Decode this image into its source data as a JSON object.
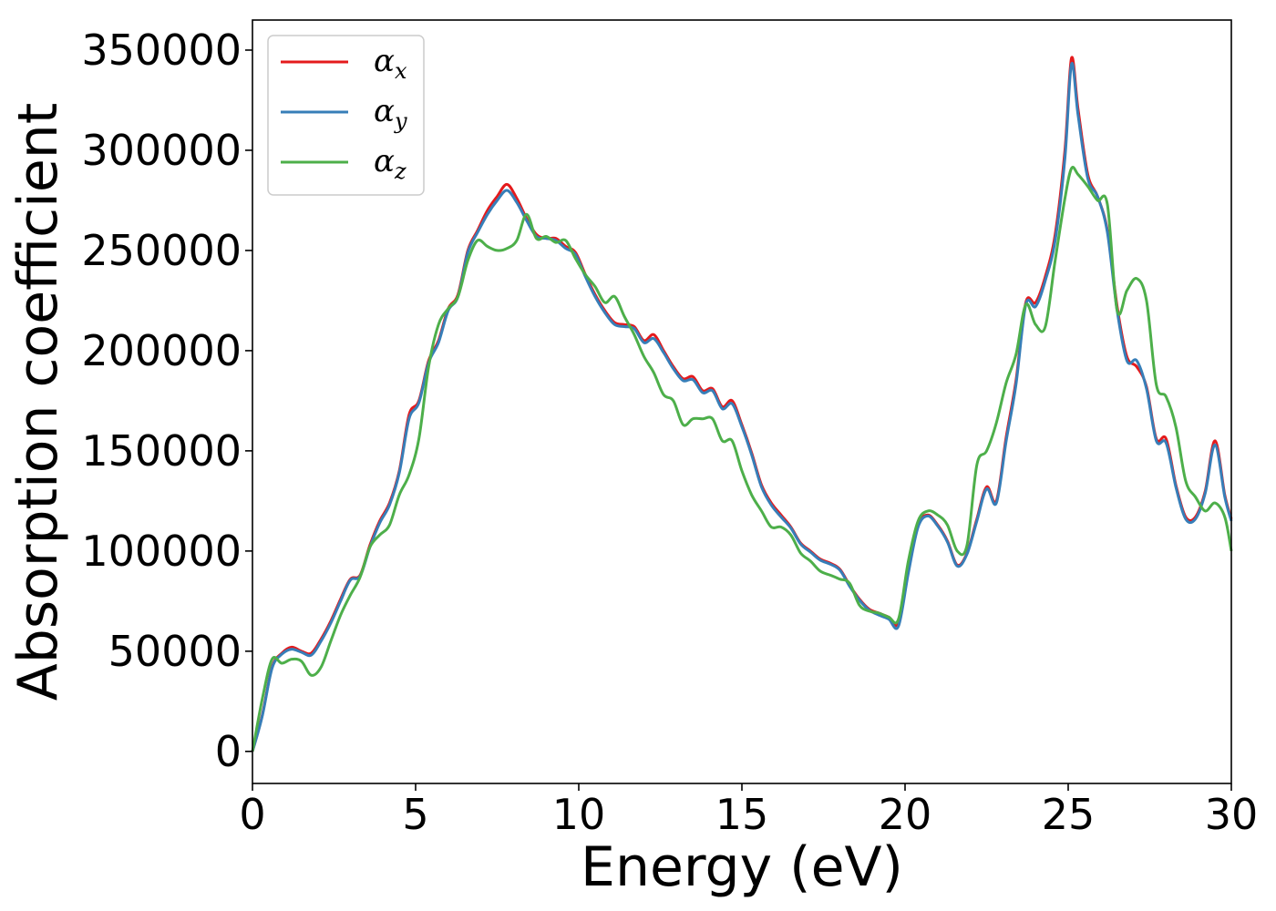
{
  "chart_data": {
    "type": "line",
    "title": "",
    "xlabel": "Energy (eV)",
    "ylabel": "Absorption coefficient",
    "xlim": [
      0,
      30
    ],
    "ylim": [
      -16000,
      365000
    ],
    "xticks": [
      0,
      5,
      10,
      15,
      20,
      25,
      30
    ],
    "xtick_labels": [
      "0",
      "5",
      "10",
      "15",
      "20",
      "25",
      "30"
    ],
    "yticks": [
      0,
      50000,
      100000,
      150000,
      200000,
      250000,
      300000,
      350000
    ],
    "ytick_labels": [
      "0",
      "50000",
      "100000",
      "150000",
      "200000",
      "250000",
      "300000",
      "350000"
    ],
    "grid": false,
    "legend_position": "top-left",
    "series": [
      {
        "name": "αx",
        "name_base": "α",
        "name_sub": "x",
        "color": "#e41a1c",
        "x": [
          0,
          0.3,
          0.6,
          0.9,
          1.2,
          1.5,
          1.8,
          2.1,
          2.4,
          2.7,
          3.0,
          3.3,
          3.6,
          3.9,
          4.2,
          4.5,
          4.8,
          5.1,
          5.4,
          5.7,
          6.0,
          6.3,
          6.6,
          6.9,
          7.2,
          7.5,
          7.8,
          8.1,
          8.4,
          8.7,
          9.0,
          9.3,
          9.6,
          9.9,
          10.2,
          10.5,
          10.8,
          11.1,
          11.4,
          11.7,
          12.0,
          12.3,
          12.6,
          12.9,
          13.2,
          13.5,
          13.8,
          14.1,
          14.4,
          14.7,
          15.0,
          15.3,
          15.6,
          15.9,
          16.2,
          16.5,
          16.8,
          17.1,
          17.4,
          17.7,
          18.0,
          18.3,
          18.6,
          18.9,
          19.2,
          19.5,
          19.8,
          20.1,
          20.4,
          20.7,
          21.0,
          21.3,
          21.6,
          21.9,
          22.2,
          22.5,
          22.8,
          23.1,
          23.4,
          23.7,
          24.0,
          24.3,
          24.6,
          24.9,
          25.1,
          25.3,
          25.6,
          25.9,
          26.2,
          26.5,
          26.8,
          27.1,
          27.4,
          27.7,
          28.0,
          28.3,
          28.6,
          28.9,
          29.2,
          29.5,
          29.8,
          30.0
        ],
        "y": [
          0,
          18000,
          42000,
          49000,
          52000,
          50000,
          49000,
          56000,
          65000,
          76000,
          86000,
          88000,
          103000,
          115000,
          124000,
          140000,
          168000,
          175000,
          195000,
          205000,
          221000,
          228000,
          250000,
          260000,
          270000,
          277000,
          283000,
          276000,
          266000,
          258000,
          256000,
          256000,
          252000,
          249000,
          238000,
          228000,
          220000,
          214000,
          213000,
          212000,
          205000,
          208000,
          200000,
          192000,
          186000,
          187000,
          180000,
          181000,
          172000,
          175000,
          163000,
          149000,
          133000,
          124000,
          118000,
          112000,
          104000,
          100000,
          96000,
          94000,
          91000,
          83000,
          76000,
          71000,
          69000,
          67000,
          64000,
          90000,
          113000,
          118000,
          113000,
          105000,
          93000,
          99000,
          116000,
          132000,
          125000,
          157000,
          185000,
          224000,
          224000,
          237000,
          258000,
          300000,
          346000,
          321000,
          288000,
          277000,
          260000,
          222000,
          197000,
          192000,
          182000,
          156000,
          156000,
          133000,
          117000,
          117000,
          130000,
          155000,
          128000,
          116000
        ]
      },
      {
        "name": "αy",
        "name_base": "α",
        "name_sub": "y",
        "color": "#377eb8",
        "x": [
          0,
          0.3,
          0.6,
          0.9,
          1.2,
          1.5,
          1.8,
          2.1,
          2.4,
          2.7,
          3.0,
          3.3,
          3.6,
          3.9,
          4.2,
          4.5,
          4.8,
          5.1,
          5.4,
          5.7,
          6.0,
          6.3,
          6.6,
          6.9,
          7.2,
          7.5,
          7.8,
          8.1,
          8.4,
          8.7,
          9.0,
          9.3,
          9.6,
          9.9,
          10.2,
          10.5,
          10.8,
          11.1,
          11.4,
          11.7,
          12.0,
          12.3,
          12.6,
          12.9,
          13.2,
          13.5,
          13.8,
          14.1,
          14.4,
          14.7,
          15.0,
          15.3,
          15.6,
          15.9,
          16.2,
          16.5,
          16.8,
          17.1,
          17.4,
          17.7,
          18.0,
          18.3,
          18.6,
          18.9,
          19.2,
          19.5,
          19.8,
          20.1,
          20.4,
          20.7,
          21.0,
          21.3,
          21.6,
          21.9,
          22.2,
          22.5,
          22.8,
          23.1,
          23.4,
          23.7,
          24.0,
          24.3,
          24.6,
          24.9,
          25.1,
          25.3,
          25.6,
          25.9,
          26.2,
          26.5,
          26.8,
          27.1,
          27.4,
          27.7,
          28.0,
          28.3,
          28.6,
          28.9,
          29.2,
          29.5,
          29.8,
          30.0
        ],
        "y": [
          0,
          17500,
          41500,
          48500,
          51000,
          49500,
          48000,
          55000,
          64000,
          75000,
          85500,
          87500,
          102000,
          114000,
          123000,
          139000,
          166000,
          174000,
          194000,
          204000,
          220000,
          227000,
          249000,
          259000,
          268000,
          275000,
          280000,
          274000,
          265000,
          257000,
          256000,
          255000,
          251000,
          248000,
          237000,
          227000,
          219000,
          213000,
          212000,
          211000,
          204000,
          206000,
          199000,
          191000,
          185000,
          185500,
          179000,
          180000,
          171000,
          173500,
          162000,
          148000,
          132000,
          123000,
          117000,
          111500,
          103500,
          99500,
          95500,
          93500,
          90500,
          82500,
          75500,
          70500,
          68000,
          66000,
          62500,
          89000,
          112000,
          117500,
          112500,
          104500,
          92500,
          98500,
          115000,
          131000,
          124000,
          155000,
          183000,
          223000,
          222000,
          235000,
          255000,
          296000,
          343000,
          318000,
          286000,
          277000,
          259000,
          220000,
          195000,
          195000,
          181000,
          155000,
          154000,
          132000,
          116000,
          116000,
          129000,
          153000,
          127000,
          115000
        ]
      },
      {
        "name": "αz",
        "name_base": "α",
        "name_sub": "z",
        "color": "#4daf4a",
        "x": [
          0,
          0.3,
          0.6,
          0.9,
          1.2,
          1.5,
          1.8,
          2.1,
          2.4,
          2.7,
          3.0,
          3.3,
          3.6,
          3.9,
          4.2,
          4.5,
          4.8,
          5.1,
          5.4,
          5.7,
          6.0,
          6.3,
          6.6,
          6.9,
          7.2,
          7.5,
          7.8,
          8.1,
          8.4,
          8.7,
          9.0,
          9.3,
          9.6,
          9.9,
          10.2,
          10.5,
          10.8,
          11.1,
          11.4,
          11.7,
          12.0,
          12.3,
          12.6,
          12.9,
          13.2,
          13.5,
          13.8,
          14.1,
          14.4,
          14.7,
          15.0,
          15.3,
          15.6,
          15.9,
          16.2,
          16.5,
          16.8,
          17.1,
          17.4,
          17.7,
          18.0,
          18.3,
          18.6,
          18.9,
          19.2,
          19.5,
          19.8,
          20.1,
          20.4,
          20.7,
          21.0,
          21.3,
          21.6,
          21.9,
          22.2,
          22.5,
          22.8,
          23.1,
          23.4,
          23.7,
          24.0,
          24.3,
          24.6,
          24.9,
          25.1,
          25.3,
          25.6,
          25.9,
          26.2,
          26.5,
          26.8,
          27.1,
          27.4,
          27.7,
          28.0,
          28.3,
          28.6,
          28.9,
          29.2,
          29.5,
          29.8,
          30.0
        ],
        "y": [
          0,
          26000,
          46000,
          44000,
          46000,
          45000,
          38000,
          42000,
          55000,
          68000,
          78000,
          87000,
          102000,
          108000,
          113000,
          128000,
          138000,
          156000,
          192000,
          213000,
          221000,
          227000,
          245000,
          255000,
          252000,
          250000,
          251000,
          255000,
          268000,
          256000,
          257000,
          254000,
          255000,
          246000,
          238000,
          232000,
          224000,
          227000,
          217000,
          208000,
          197000,
          189000,
          178000,
          175000,
          163000,
          166000,
          166000,
          166000,
          155000,
          155000,
          140000,
          128000,
          120000,
          112000,
          112000,
          108000,
          99000,
          95000,
          90000,
          88000,
          86000,
          84000,
          73000,
          70000,
          69000,
          67000,
          66000,
          95000,
          115000,
          120000,
          118000,
          113000,
          100000,
          103000,
          143000,
          150000,
          164000,
          184000,
          198000,
          223000,
          213000,
          212000,
          245000,
          276000,
          291000,
          288000,
          282000,
          275000,
          273000,
          220000,
          230000,
          236000,
          225000,
          183000,
          177000,
          162000,
          135000,
          127000,
          120000,
          124000,
          117000,
          100000
        ]
      }
    ]
  }
}
